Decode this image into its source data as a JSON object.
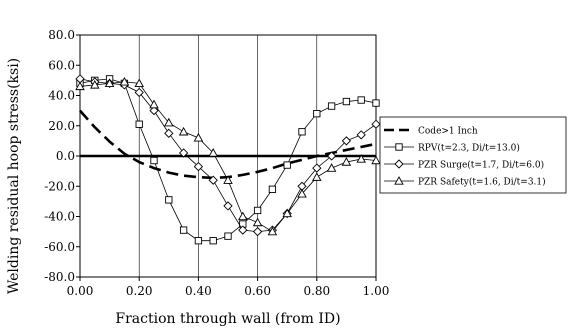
{
  "chart_data": {
    "type": "line",
    "title": "",
    "xlabel": "Fraction through wall (from ID)",
    "ylabel": "Welding residual hoop stress(ksi)",
    "xlim": [
      0,
      1
    ],
    "ylim": [
      -80,
      80
    ],
    "x_ticks": [
      "0.00",
      "0.20",
      "0.40",
      "0.60",
      "0.80",
      "1.00"
    ],
    "y_ticks": [
      "-80.0",
      "-60.0",
      "-40.0",
      "-20.0",
      "0.0",
      "20.0",
      "40.0",
      "60.0",
      "80.0"
    ],
    "grid": "vertical gridlines",
    "legend_position": "right",
    "series": [
      {
        "name": "Code>1 Inch",
        "style": "dashed-thick",
        "marker": "none",
        "color": "#000000",
        "x": [
          0.0,
          0.05,
          0.1,
          0.15,
          0.2,
          0.25,
          0.3,
          0.35,
          0.4,
          0.45,
          0.5,
          0.55,
          0.6,
          0.65,
          0.7,
          0.75,
          0.8,
          0.85,
          0.9,
          0.95,
          1.0
        ],
        "y": [
          30.0,
          19.0,
          9.5,
          1.5,
          -4.0,
          -8.0,
          -11.0,
          -13.0,
          -14.0,
          -14.5,
          -14.0,
          -12.5,
          -10.5,
          -8.0,
          -5.0,
          -2.5,
          0.0,
          2.0,
          4.0,
          6.0,
          8.0
        ]
      },
      {
        "name": "RPV(t=2.3, Di/t=13.0)",
        "style": "solid-thin",
        "marker": "square",
        "color": "#000000",
        "x": [
          0.0,
          0.05,
          0.1,
          0.15,
          0.2,
          0.25,
          0.3,
          0.35,
          0.4,
          0.45,
          0.5,
          0.55,
          0.6,
          0.65,
          0.7,
          0.75,
          0.8,
          0.85,
          0.9,
          0.95,
          1.0
        ],
        "y": [
          48.0,
          50.0,
          51.0,
          48.0,
          21.0,
          -3.0,
          -29.0,
          -49.0,
          -56.0,
          -56.0,
          -53.0,
          -45.0,
          -36.0,
          -22.0,
          -6.0,
          16.0,
          28.0,
          33.0,
          36.0,
          37.0,
          35.0
        ]
      },
      {
        "name": "PZR Surge(t=1.7, Di/t=6.0)",
        "style": "solid-thin",
        "marker": "diamond",
        "color": "#000000",
        "x": [
          0.0,
          0.05,
          0.1,
          0.15,
          0.2,
          0.25,
          0.3,
          0.35,
          0.4,
          0.45,
          0.5,
          0.55,
          0.6,
          0.65,
          0.7,
          0.75,
          0.8,
          0.85,
          0.9,
          0.95,
          1.0
        ],
        "y": [
          51.0,
          49.0,
          48.0,
          47.0,
          42.0,
          30.0,
          15.0,
          2.0,
          -7.0,
          -16.0,
          -33.0,
          -49.0,
          -50.0,
          -49.0,
          -38.0,
          -20.0,
          -8.0,
          0.0,
          10.0,
          14.0,
          21.0
        ]
      },
      {
        "name": "PZR Safety(t=1.6, Di/t=3.1)",
        "style": "solid-thin",
        "marker": "triangle",
        "color": "#000000",
        "x": [
          0.0,
          0.05,
          0.1,
          0.15,
          0.2,
          0.25,
          0.3,
          0.35,
          0.4,
          0.45,
          0.5,
          0.55,
          0.6,
          0.65,
          0.7,
          0.75,
          0.8,
          0.85,
          0.9,
          0.95,
          1.0
        ],
        "y": [
          46.0,
          47.0,
          48.0,
          49.0,
          48.0,
          34.0,
          22.0,
          16.0,
          12.0,
          2.0,
          -16.0,
          -40.0,
          -44.0,
          -50.0,
          -38.0,
          -25.0,
          -14.0,
          -8.0,
          -4.0,
          -2.0,
          -3.0
        ]
      }
    ]
  }
}
